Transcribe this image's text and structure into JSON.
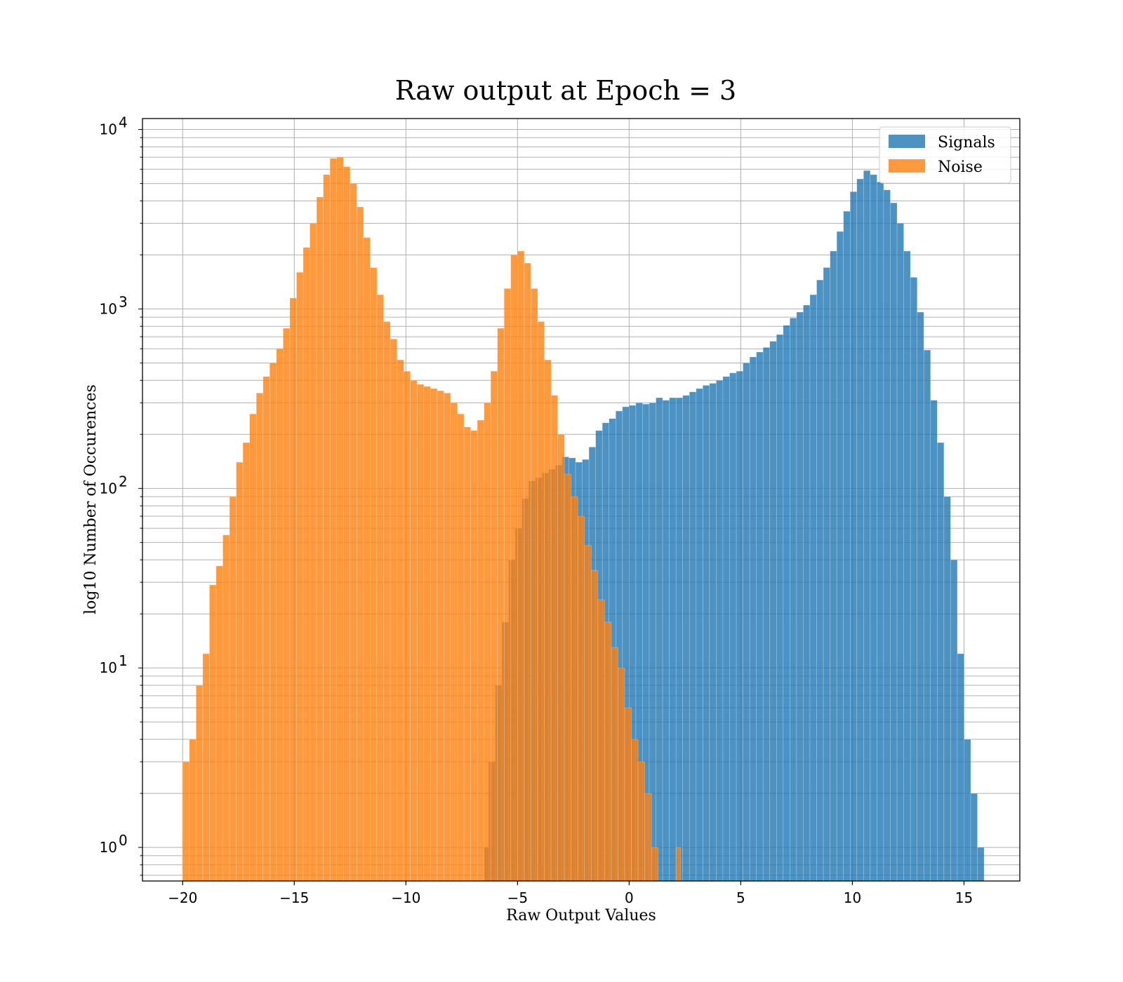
{
  "chart_data": {
    "type": "bar",
    "subtype": "histogram",
    "title": "Raw output at Epoch = 3",
    "xlabel": "Raw Output Values",
    "ylabel": "log10 Number of Occurences",
    "xlim": [
      -21.8,
      17.5
    ],
    "ylim": [
      0.65,
      11500
    ],
    "yscale": "log",
    "x_ticks": [
      {
        "value": -20,
        "label": "−20"
      },
      {
        "value": -15,
        "label": "−15"
      },
      {
        "value": -10,
        "label": "−10"
      },
      {
        "value": -5,
        "label": "−5"
      },
      {
        "value": 0,
        "label": "0"
      },
      {
        "value": 5,
        "label": "5"
      },
      {
        "value": 10,
        "label": "10"
      },
      {
        "value": 15,
        "label": "15"
      }
    ],
    "y_ticks": [
      {
        "value": 1,
        "base": "10",
        "exp": "0"
      },
      {
        "value": 10,
        "base": "10",
        "exp": "1"
      },
      {
        "value": 100,
        "base": "10",
        "exp": "2"
      },
      {
        "value": 1000,
        "base": "10",
        "exp": "3"
      },
      {
        "value": 10000,
        "base": "10",
        "exp": "4"
      }
    ],
    "grid": true,
    "legend_position": "top-right",
    "series": [
      {
        "name": "Signals",
        "color": "#1f77b4",
        "alpha": 0.8,
        "bins": [
          [
            -6.5,
            -6.3,
            1
          ],
          [
            -6.3,
            -6.0,
            3
          ],
          [
            -6.0,
            -5.7,
            8
          ],
          [
            -5.7,
            -5.4,
            18
          ],
          [
            -5.4,
            -5.1,
            40
          ],
          [
            -5.1,
            -4.8,
            60
          ],
          [
            -4.8,
            -4.5,
            88
          ],
          [
            -4.5,
            -4.2,
            110
          ],
          [
            -4.2,
            -3.9,
            115
          ],
          [
            -3.9,
            -3.6,
            122
          ],
          [
            -3.6,
            -3.3,
            128
          ],
          [
            -3.3,
            -3.0,
            135
          ],
          [
            -3.0,
            -2.7,
            150
          ],
          [
            -2.7,
            -2.4,
            148
          ],
          [
            -2.4,
            -2.1,
            140
          ],
          [
            -2.1,
            -1.8,
            145
          ],
          [
            -1.8,
            -1.5,
            170
          ],
          [
            -1.5,
            -1.2,
            210
          ],
          [
            -1.2,
            -0.9,
            232
          ],
          [
            -0.9,
            -0.6,
            245
          ],
          [
            -0.6,
            -0.3,
            270
          ],
          [
            -0.3,
            0.0,
            285
          ],
          [
            0.0,
            0.3,
            290
          ],
          [
            0.3,
            0.6,
            300
          ],
          [
            0.6,
            0.9,
            295
          ],
          [
            0.9,
            1.2,
            300
          ],
          [
            1.2,
            1.5,
            320
          ],
          [
            1.5,
            1.8,
            310
          ],
          [
            1.8,
            2.1,
            320
          ],
          [
            2.1,
            2.4,
            320
          ],
          [
            2.4,
            2.7,
            330
          ],
          [
            2.7,
            3.0,
            345
          ],
          [
            3.0,
            3.3,
            360
          ],
          [
            3.3,
            3.6,
            375
          ],
          [
            3.6,
            3.9,
            385
          ],
          [
            3.9,
            4.2,
            400
          ],
          [
            4.2,
            4.5,
            420
          ],
          [
            4.5,
            4.8,
            440
          ],
          [
            4.8,
            5.1,
            450
          ],
          [
            5.1,
            5.4,
            500
          ],
          [
            5.4,
            5.7,
            540
          ],
          [
            5.7,
            6.0,
            575
          ],
          [
            6.0,
            6.3,
            610
          ],
          [
            6.3,
            6.6,
            660
          ],
          [
            6.6,
            6.9,
            720
          ],
          [
            6.9,
            7.2,
            810
          ],
          [
            7.2,
            7.5,
            890
          ],
          [
            7.5,
            7.8,
            960
          ],
          [
            7.8,
            8.1,
            1050
          ],
          [
            8.1,
            8.4,
            1200
          ],
          [
            8.4,
            8.7,
            1450
          ],
          [
            8.7,
            9.0,
            1700
          ],
          [
            9.0,
            9.3,
            2100
          ],
          [
            9.3,
            9.6,
            2700
          ],
          [
            9.6,
            9.9,
            3500
          ],
          [
            9.9,
            10.2,
            4500
          ],
          [
            10.2,
            10.5,
            5300
          ],
          [
            10.5,
            10.8,
            5900
          ],
          [
            10.8,
            11.1,
            5600
          ],
          [
            11.1,
            11.4,
            5100
          ],
          [
            11.4,
            11.7,
            4600
          ],
          [
            11.7,
            12.0,
            3900
          ],
          [
            12.0,
            12.3,
            3000
          ],
          [
            12.3,
            12.6,
            2100
          ],
          [
            12.6,
            12.9,
            1500
          ],
          [
            12.9,
            13.2,
            960
          ],
          [
            13.2,
            13.5,
            590
          ],
          [
            13.5,
            13.8,
            310
          ],
          [
            13.8,
            14.1,
            180
          ],
          [
            14.1,
            14.4,
            90
          ],
          [
            14.4,
            14.7,
            40
          ],
          [
            14.7,
            15.0,
            12
          ],
          [
            15.0,
            15.3,
            4
          ],
          [
            15.3,
            15.6,
            2
          ],
          [
            15.6,
            15.9,
            1
          ]
        ]
      },
      {
        "name": "Noise",
        "color": "#ff7f0e",
        "alpha": 0.8,
        "bins": [
          [
            -20.0,
            -19.7,
            3
          ],
          [
            -19.7,
            -19.4,
            4
          ],
          [
            -19.4,
            -19.1,
            8
          ],
          [
            -19.1,
            -18.8,
            12
          ],
          [
            -18.8,
            -18.5,
            29
          ],
          [
            -18.5,
            -18.2,
            37
          ],
          [
            -18.2,
            -17.9,
            55
          ],
          [
            -17.9,
            -17.6,
            90
          ],
          [
            -17.6,
            -17.3,
            140
          ],
          [
            -17.3,
            -17.0,
            180
          ],
          [
            -17.0,
            -16.7,
            260
          ],
          [
            -16.7,
            -16.4,
            340
          ],
          [
            -16.4,
            -16.1,
            420
          ],
          [
            -16.1,
            -15.8,
            500
          ],
          [
            -15.8,
            -15.5,
            600
          ],
          [
            -15.5,
            -15.2,
            780
          ],
          [
            -15.2,
            -14.9,
            1150
          ],
          [
            -14.9,
            -14.6,
            1600
          ],
          [
            -14.6,
            -14.3,
            2200
          ],
          [
            -14.3,
            -14.0,
            3000
          ],
          [
            -14.0,
            -13.7,
            4200
          ],
          [
            -13.7,
            -13.4,
            5600
          ],
          [
            -13.4,
            -13.1,
            6900
          ],
          [
            -13.1,
            -12.8,
            7000
          ],
          [
            -12.8,
            -12.5,
            6200
          ],
          [
            -12.5,
            -12.2,
            5000
          ],
          [
            -12.2,
            -11.9,
            3700
          ],
          [
            -11.9,
            -11.6,
            2500
          ],
          [
            -11.6,
            -11.3,
            1700
          ],
          [
            -11.3,
            -11.0,
            1200
          ],
          [
            -11.0,
            -10.7,
            850
          ],
          [
            -10.7,
            -10.4,
            680
          ],
          [
            -10.4,
            -10.1,
            520
          ],
          [
            -10.1,
            -9.8,
            450
          ],
          [
            -9.8,
            -9.5,
            400
          ],
          [
            -9.5,
            -9.2,
            380
          ],
          [
            -9.2,
            -8.9,
            370
          ],
          [
            -8.9,
            -8.6,
            360
          ],
          [
            -8.6,
            -8.3,
            350
          ],
          [
            -8.3,
            -8.0,
            340
          ],
          [
            -8.0,
            -7.7,
            300
          ],
          [
            -7.7,
            -7.4,
            260
          ],
          [
            -7.4,
            -7.1,
            220
          ],
          [
            -7.1,
            -6.8,
            210
          ],
          [
            -6.8,
            -6.5,
            240
          ],
          [
            -6.5,
            -6.2,
            300
          ],
          [
            -6.2,
            -5.9,
            450
          ],
          [
            -5.9,
            -5.6,
            780
          ],
          [
            -5.6,
            -5.3,
            1300
          ],
          [
            -5.3,
            -5.0,
            2000
          ],
          [
            -5.0,
            -4.7,
            2100
          ],
          [
            -4.7,
            -4.4,
            1800
          ],
          [
            -4.4,
            -4.1,
            1300
          ],
          [
            -4.1,
            -3.8,
            850
          ],
          [
            -3.8,
            -3.5,
            520
          ],
          [
            -3.5,
            -3.2,
            330
          ],
          [
            -3.2,
            -2.9,
            200
          ],
          [
            -2.9,
            -2.6,
            120
          ],
          [
            -2.6,
            -2.3,
            90
          ],
          [
            -2.3,
            -2.0,
            70
          ],
          [
            -2.0,
            -1.7,
            48
          ],
          [
            -1.7,
            -1.4,
            35
          ],
          [
            -1.4,
            -1.1,
            24
          ],
          [
            -1.1,
            -0.8,
            18
          ],
          [
            -0.8,
            -0.5,
            13
          ],
          [
            -0.5,
            -0.2,
            10
          ],
          [
            -0.2,
            0.1,
            6
          ],
          [
            0.1,
            0.4,
            4
          ],
          [
            0.4,
            0.7,
            3
          ],
          [
            0.7,
            1.0,
            2
          ],
          [
            1.0,
            1.3,
            1
          ],
          [
            2.1,
            2.3,
            1
          ]
        ]
      }
    ]
  },
  "legend": {
    "items": [
      {
        "label": "Signals",
        "color": "#1f77b4"
      },
      {
        "label": "Noise",
        "color": "#ff7f0e"
      }
    ]
  }
}
